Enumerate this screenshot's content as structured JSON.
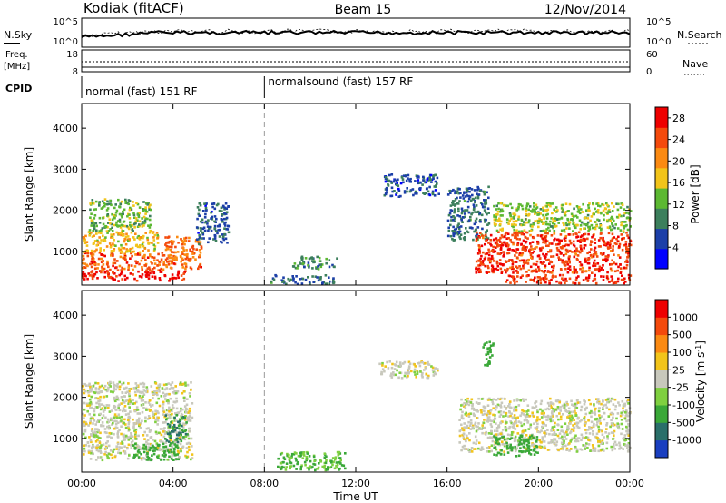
{
  "header": {
    "station": "Kodiak (fitACF)",
    "beam": "Beam 15",
    "date": "12/Nov/2014"
  },
  "status_panel": {
    "nsky_label": "N.Sky",
    "nsky_ticks": [
      "10^5",
      "10^0"
    ],
    "nsearch_label": "N.Search",
    "nsearch_ticks": [
      "10^5",
      "10^0"
    ],
    "freq_label": "Freq.",
    "freq_unit": "[MHz]",
    "freq_ticks": [
      "18",
      "8"
    ],
    "nave_label": "Nave",
    "nave_ticks": [
      "60",
      "0"
    ],
    "cpid_label": "CPID",
    "cpid_segments": [
      {
        "label": "normal (fast) 151 RF",
        "start_hour": 0
      },
      {
        "label": "normalsound (fast) 157 RF",
        "start_hour": 8
      }
    ]
  },
  "chart_data": [
    {
      "type": "heatmap",
      "name": "power",
      "xlabel": "Time UT",
      "ylabel": "Slant Range [km]",
      "x_ticks": [
        "00:00",
        "04:00",
        "08:00",
        "12:00",
        "16:00",
        "20:00",
        "00:00"
      ],
      "x_range_hours": [
        0,
        24
      ],
      "y_ticks": [
        1000,
        2000,
        3000,
        4000
      ],
      "y_range_km": [
        180,
        4600
      ],
      "colorbar": {
        "label": "Power [dB]",
        "ticks": [
          "4",
          "8",
          "12",
          "16",
          "20",
          "24",
          "28"
        ],
        "range": [
          0,
          30
        ],
        "colors": [
          "#0000ff",
          "#1c3fa8",
          "#3c7f5c",
          "#5cb832",
          "#f2c41a",
          "#fb8a12",
          "#f44a0c",
          "#ee0000"
        ]
      },
      "regions": [
        {
          "t0": 0.0,
          "t1": 4.5,
          "r0": 300,
          "r1": 550,
          "level": 30
        },
        {
          "t0": 0.0,
          "t1": 3.6,
          "r0": 550,
          "r1": 1000,
          "level": 25
        },
        {
          "t0": 0.0,
          "t1": 3.3,
          "r0": 1000,
          "r1": 1500,
          "level": 18
        },
        {
          "t0": 0.3,
          "t1": 3.0,
          "r0": 1500,
          "r1": 2300,
          "level": 13
        },
        {
          "t0": 3.6,
          "t1": 5.2,
          "r0": 600,
          "r1": 1400,
          "level": 24
        },
        {
          "t0": 5.0,
          "t1": 6.4,
          "r0": 1200,
          "r1": 2200,
          "level": 6
        },
        {
          "t0": 9.2,
          "t1": 11.2,
          "r0": 600,
          "r1": 900,
          "level": 9
        },
        {
          "t0": 8.2,
          "t1": 11.0,
          "r0": 220,
          "r1": 450,
          "level": 7
        },
        {
          "t0": 13.2,
          "t1": 15.6,
          "r0": 2350,
          "r1": 2900,
          "level": 5
        },
        {
          "t0": 16.0,
          "t1": 17.8,
          "r0": 1300,
          "r1": 2600,
          "level": 7
        },
        {
          "t0": 17.2,
          "t1": 24.0,
          "r0": 500,
          "r1": 1500,
          "level": 27
        },
        {
          "t0": 18.0,
          "t1": 24.0,
          "r0": 1500,
          "r1": 2200,
          "level": 14
        },
        {
          "t0": 18.5,
          "t1": 24.0,
          "r0": 250,
          "r1": 450,
          "level": 28
        }
      ]
    },
    {
      "type": "heatmap",
      "name": "velocity",
      "xlabel": "Time UT",
      "ylabel": "Slant Range [km]",
      "x_ticks": [
        "00:00",
        "04:00",
        "08:00",
        "12:00",
        "16:00",
        "20:00",
        "00:00"
      ],
      "x_range_hours": [
        0,
        24
      ],
      "y_ticks": [
        1000,
        2000,
        3000,
        4000
      ],
      "y_range_km": [
        180,
        4600
      ],
      "colorbar": {
        "label": "Velocity [m s^-1]",
        "ticks": [
          "1000",
          "500",
          "100",
          "25",
          "-25",
          "-100",
          "-500",
          "-1000"
        ],
        "colors": [
          "#1a3fc0",
          "#2a6f6a",
          "#3aa838",
          "#7fd040",
          "#c8c8bc",
          "#f2c41a",
          "#fb8a12",
          "#f44a0c",
          "#ee0000"
        ]
      },
      "regions": [
        {
          "t0": 0.0,
          "t1": 4.8,
          "r0": 500,
          "r1": 2400,
          "value": 0
        },
        {
          "t0": 2.2,
          "t1": 4.2,
          "r0": 500,
          "r1": 900,
          "value": 150
        },
        {
          "t0": 3.6,
          "t1": 4.6,
          "r0": 900,
          "r1": 1600,
          "value": 500
        },
        {
          "t0": 8.5,
          "t1": 11.5,
          "r0": 250,
          "r1": 700,
          "value": 100
        },
        {
          "t0": 13.0,
          "t1": 15.6,
          "r0": 2500,
          "r1": 2900,
          "value": 0
        },
        {
          "t0": 16.5,
          "t1": 24.0,
          "r0": 700,
          "r1": 2000,
          "value": 0
        },
        {
          "t0": 18.0,
          "t1": 20.0,
          "r0": 600,
          "r1": 1100,
          "value": 150
        },
        {
          "t0": 17.5,
          "t1": 18.0,
          "r0": 2800,
          "r1": 3400,
          "value": 150
        }
      ]
    }
  ]
}
